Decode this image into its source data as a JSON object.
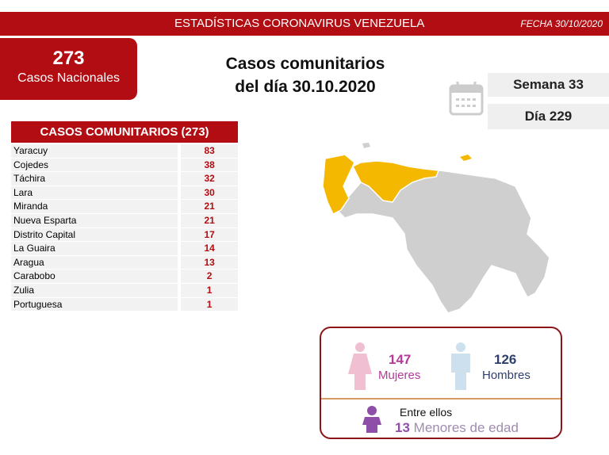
{
  "header": {
    "title": "ESTADÍSTICAS CORONAVIRUS VENEZUELA",
    "date": "FECHA 30/10/2020"
  },
  "national": {
    "count": "273",
    "label": "Casos Nacionales"
  },
  "main_title": {
    "line1": "Casos comunitarios",
    "line2": "del día 30.10.2020"
  },
  "calendar": {
    "icon": "calendar-icon",
    "week": "Semana 33",
    "day": "Día 229"
  },
  "table": {
    "header": "CASOS COMUNITARIOS (273)",
    "rows": [
      {
        "state": "Yaracuy",
        "cases": "83"
      },
      {
        "state": "Cojedes",
        "cases": "38"
      },
      {
        "state": "Táchira",
        "cases": "32"
      },
      {
        "state": "Lara",
        "cases": "30"
      },
      {
        "state": "Miranda",
        "cases": "21"
      },
      {
        "state": "Nueva Esparta",
        "cases": "21"
      },
      {
        "state": "Distrito Capital",
        "cases": "17"
      },
      {
        "state": "La Guaira",
        "cases": "14"
      },
      {
        "state": "Aragua",
        "cases": "13"
      },
      {
        "state": "Carabobo",
        "cases": "2"
      },
      {
        "state": "Zulia",
        "cases": "1"
      },
      {
        "state": "Portuguesa",
        "cases": "1"
      }
    ]
  },
  "map": {
    "highlight_color": "#f5b800",
    "base_color": "#cfcfcf"
  },
  "demographics": {
    "women_count": "147",
    "women_label": "Mujeres",
    "men_count": "126",
    "men_label": "Hombres",
    "among_label": "Entre ellos",
    "minors_count": "13",
    "minors_label": "Menores de edad",
    "women_color": "#b43a9a",
    "men_color": "#2e3f6e",
    "minors_color": "#8e4fa8"
  },
  "colors": {
    "brand": "#b10d12"
  }
}
